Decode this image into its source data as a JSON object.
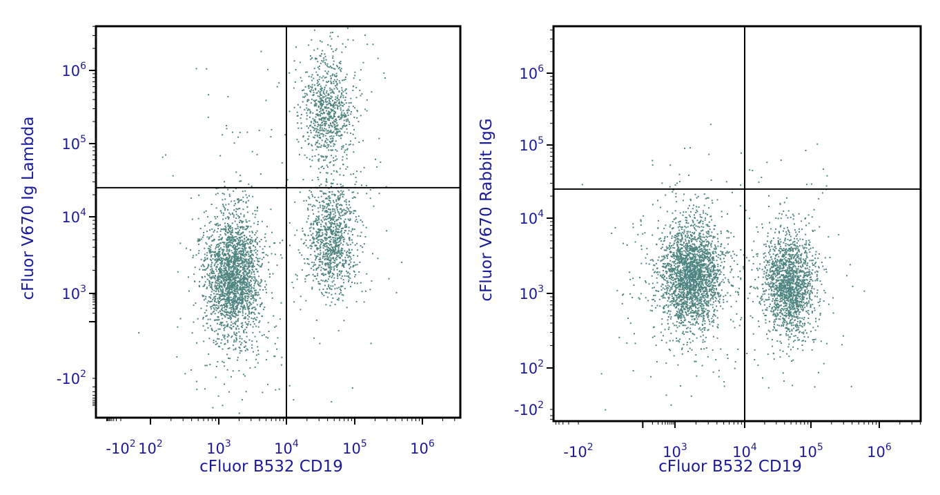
{
  "theme": {
    "dot_color": "#4e8480",
    "label_color": "#1a1a9a",
    "line_color": "#000000"
  },
  "chart_data": [
    {
      "type": "scatter",
      "subtype": "flow-cytometry-dot-plot",
      "xlabel": "cFluor B532 CD19",
      "ylabel": "cFluor V670 Ig Lambda",
      "x_scale": "biexponential",
      "y_scale": "biexponential",
      "x_ticks": [
        {
          "value": -100,
          "base": "-10",
          "exp": "2"
        },
        {
          "value": 100,
          "base": "10",
          "exp": "2"
        },
        {
          "value": 1000,
          "base": "10",
          "exp": "3"
        },
        {
          "value": 10000,
          "base": "10",
          "exp": "4"
        },
        {
          "value": 100000,
          "base": "10",
          "exp": "5"
        },
        {
          "value": 1000000,
          "base": "10",
          "exp": "6"
        }
      ],
      "y_ticks": [
        {
          "value": -100,
          "base": "-10",
          "exp": "2"
        },
        {
          "value": 1000,
          "base": "10",
          "exp": "3"
        },
        {
          "value": 10000,
          "base": "10",
          "exp": "4"
        },
        {
          "value": 100000,
          "base": "10",
          "exp": "5"
        },
        {
          "value": 1000000,
          "base": "10",
          "exp": "6"
        }
      ],
      "quadrant_gate": {
        "x": 10000,
        "y": 25000
      },
      "populations": [
        {
          "label": "CD19- Ig Lambda-",
          "x_center": 1600,
          "y_center": 1700,
          "relative_count": 0.55
        },
        {
          "label": "CD19+ Ig Lambda+",
          "x_center": 40000,
          "y_center": 300000,
          "relative_count": 0.2
        },
        {
          "label": "CD19+ Ig Lambda-",
          "x_center": 45000,
          "y_center": 5000,
          "relative_count": 0.25
        }
      ],
      "grid": false
    },
    {
      "type": "scatter",
      "subtype": "flow-cytometry-dot-plot",
      "xlabel": "cFluor B532 CD19",
      "ylabel": "cFluor V670 Rabbit IgG",
      "x_scale": "biexponential",
      "y_scale": "biexponential",
      "x_ticks": [
        {
          "value": -100,
          "base": "-10",
          "exp": "2"
        },
        {
          "value": 1000,
          "base": "10",
          "exp": "3"
        },
        {
          "value": 10000,
          "base": "10",
          "exp": "4"
        },
        {
          "value": 100000,
          "base": "10",
          "exp": "5"
        },
        {
          "value": 1000000,
          "base": "10",
          "exp": "6"
        }
      ],
      "y_ticks": [
        {
          "value": -100,
          "base": "-10",
          "exp": "2"
        },
        {
          "value": 100,
          "base": "10",
          "exp": "2"
        },
        {
          "value": 1000,
          "base": "10",
          "exp": "3"
        },
        {
          "value": 10000,
          "base": "10",
          "exp": "4"
        },
        {
          "value": 100000,
          "base": "10",
          "exp": "5"
        },
        {
          "value": 1000000,
          "base": "10",
          "exp": "6"
        }
      ],
      "quadrant_gate": {
        "x": 10000,
        "y": 25000
      },
      "populations": [
        {
          "label": "CD19- Rabbit IgG-",
          "x_center": 1700,
          "y_center": 1800,
          "relative_count": 0.6
        },
        {
          "label": "CD19+ Rabbit IgG-",
          "x_center": 45000,
          "y_center": 1300,
          "relative_count": 0.4
        }
      ],
      "grid": false
    }
  ]
}
